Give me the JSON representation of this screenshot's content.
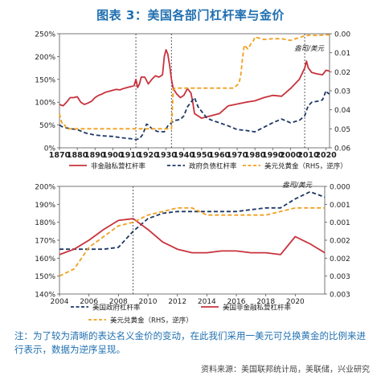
{
  "title": "图表 3：美国各部门杠杆率与金价",
  "note": "注：为了较为清晰的表达名义金价的变动，在此我们采用一美元可兑换黄金的比例来进行表示，数据为逆序呈现。",
  "source": "资料来源：美国联邦统计局，美联储，兴业研究",
  "colors": {
    "red": "#c8323c",
    "navy": "#1f3864",
    "gold": "#f0a020"
  },
  "chart_data": [
    {
      "type": "line",
      "x_range": [
        1870,
        2022
      ],
      "x_ticks": [
        "1870",
        "1880",
        "1890",
        "1900",
        "1910",
        "1920",
        "1930",
        "1940",
        "1950",
        "1960",
        "1970",
        "1980",
        "1990",
        "2000",
        "2010",
        "2020"
      ],
      "y_left_ticks": [
        "0%",
        "50%",
        "100%",
        "150%",
        "200%",
        "250%"
      ],
      "y_left_range": [
        0,
        250
      ],
      "y_right_ticks": [
        "0.00",
        "0.01",
        "0.02",
        "0.03",
        "0.04",
        "0.05",
        "0.06"
      ],
      "y_right_range": [
        0,
        0.06
      ],
      "y_right_inverted": true,
      "annotation": "盎司/美元",
      "vlines": [
        1913,
        1933,
        2008
      ],
      "series": [
        {
          "name": "非金融私营杠杆率",
          "axis": "left",
          "color": "#c8323c",
          "dash": "solid",
          "x": [
            1870,
            1872,
            1874,
            1876,
            1878,
            1880,
            1882,
            1884,
            1886,
            1888,
            1890,
            1892,
            1894,
            1896,
            1898,
            1900,
            1902,
            1904,
            1906,
            1908,
            1910,
            1912,
            1913,
            1914,
            1915,
            1916,
            1918,
            1920,
            1922,
            1924,
            1926,
            1928,
            1929,
            1930,
            1931,
            1932,
            1933,
            1934,
            1936,
            1938,
            1940,
            1942,
            1944,
            1945,
            1946,
            1948,
            1950,
            1955,
            1960,
            1965,
            1970,
            1975,
            1980,
            1985,
            1990,
            1995,
            2000,
            2005,
            2008,
            2009,
            2010,
            2012,
            2015,
            2018,
            2020,
            2022
          ],
          "y": [
            95,
            92,
            100,
            110,
            110,
            112,
            100,
            95,
            98,
            102,
            110,
            115,
            118,
            122,
            124,
            126,
            128,
            127,
            130,
            132,
            134,
            136,
            150,
            132,
            140,
            155,
            155,
            140,
            150,
            158,
            155,
            160,
            200,
            215,
            205,
            180,
            150,
            130,
            118,
            110,
            115,
            130,
            120,
            100,
            75,
            70,
            65,
            70,
            75,
            92,
            96,
            100,
            103,
            110,
            115,
            113,
            130,
            150,
            175,
            190,
            175,
            165,
            162,
            160,
            170,
            168
          ]
        },
        {
          "name": "政府负债杠杆率",
          "axis": "left",
          "color": "#1f3864",
          "dash": "dash",
          "x": [
            1870,
            1872,
            1876,
            1880,
            1885,
            1890,
            1895,
            1900,
            1905,
            1910,
            1913,
            1915,
            1917,
            1919,
            1920,
            1922,
            1925,
            1929,
            1931,
            1933,
            1935,
            1938,
            1940,
            1942,
            1944,
            1946,
            1948,
            1950,
            1953,
            1956,
            1960,
            1965,
            1970,
            1975,
            1980,
            1985,
            1990,
            1995,
            2000,
            2005,
            2008,
            2009,
            2010,
            2012,
            2015,
            2018,
            2020,
            2021,
            2022
          ],
          "y": [
            50,
            45,
            42,
            40,
            32,
            28,
            26,
            25,
            22,
            20,
            18,
            20,
            30,
            52,
            50,
            42,
            36,
            35,
            48,
            55,
            60,
            62,
            70,
            90,
            100,
            110,
            90,
            80,
            65,
            60,
            55,
            48,
            40,
            38,
            35,
            45,
            55,
            63,
            55,
            60,
            70,
            82,
            92,
            100,
            102,
            105,
            125,
            120,
            118
          ]
        },
        {
          "name": "美元兑黄金（RHS，逆序）",
          "axis": "right",
          "color": "#f0a020",
          "dash": "dash",
          "x": [
            1870,
            1871,
            1872,
            1873,
            1874,
            1876,
            1878,
            1880,
            1890,
            1900,
            1910,
            1920,
            1930,
            1933,
            1934,
            1935,
            1940,
            1950,
            1960,
            1968,
            1970,
            1971,
            1972,
            1973,
            1974,
            1976,
            1978,
            1979,
            1980,
            1985,
            1990,
            1995,
            2000,
            2005,
            2008,
            2009,
            2010,
            2015,
            2020,
            2022
          ],
          "y": [
            0.042,
            0.046,
            0.048,
            0.048,
            0.05,
            0.05,
            0.05,
            0.05,
            0.05,
            0.05,
            0.05,
            0.05,
            0.05,
            0.05,
            0.0295,
            0.0286,
            0.0286,
            0.0286,
            0.0286,
            0.0286,
            0.027,
            0.026,
            0.022,
            0.013,
            0.006,
            0.008,
            0.005,
            0.004,
            0.0017,
            0.003,
            0.0026,
            0.0026,
            0.0035,
            0.002,
            0.0011,
            0.0009,
            0.0007,
            0.0009,
            0.0006,
            0.0006
          ]
        }
      ]
    },
    {
      "type": "line",
      "x_range": [
        2004,
        2022
      ],
      "x_ticks": [
        "2004",
        "2006",
        "2008",
        "2010",
        "2012",
        "2014",
        "2016",
        "2018",
        "2020"
      ],
      "y_left_ticks": [
        "140%",
        "150%",
        "160%",
        "170%",
        "180%",
        "190%",
        "200%"
      ],
      "y_left_range": [
        140,
        200
      ],
      "y_right_ticks": [
        "0.000",
        "0.001",
        "0.001",
        "0.002",
        "0.002",
        "0.003",
        "0.003"
      ],
      "y_right_range": [
        0,
        0.003
      ],
      "y_right_inverted": true,
      "annotation": "盎司/美元",
      "vlines": [
        2009
      ],
      "series": [
        {
          "name": "美国政府杠杆率",
          "axis": "left",
          "color": "#1f3864",
          "dash": "dash",
          "x": [
            2004,
            2005,
            2006,
            2007,
            2008,
            2009,
            2010,
            2011,
            2012,
            2013,
            2014,
            2015,
            2016,
            2017,
            2018,
            2019,
            2020,
            2021,
            2022
          ],
          "y": [
            165,
            165,
            165,
            165,
            166,
            175,
            182,
            185,
            186,
            186,
            186,
            186,
            186,
            187,
            188,
            188,
            193,
            197,
            194
          ]
        },
        {
          "name": "美国非金融私营杠杆率",
          "axis": "left",
          "color": "#c8323c",
          "dash": "solid",
          "x": [
            2004,
            2005,
            2006,
            2007,
            2008,
            2009,
            2010,
            2011,
            2012,
            2013,
            2014,
            2015,
            2016,
            2017,
            2018,
            2019,
            2020,
            2021,
            2022
          ],
          "y": [
            162,
            165,
            170,
            176,
            181,
            182,
            176,
            169,
            165,
            163,
            163,
            164,
            164,
            163,
            163,
            162,
            172,
            168,
            163
          ]
        },
        {
          "name": "美元兑黄金（RHS，逆序）",
          "axis": "right",
          "color": "#f0a020",
          "dash": "dash",
          "x": [
            2004,
            2005,
            2006,
            2007,
            2008,
            2009,
            2010,
            2011,
            2012,
            2013,
            2014,
            2015,
            2016,
            2017,
            2018,
            2019,
            2020,
            2021,
            2022
          ],
          "y": [
            0.0025,
            0.0023,
            0.0017,
            0.0014,
            0.0011,
            0.001,
            0.0008,
            0.0007,
            0.0006,
            0.0006,
            0.0008,
            0.0008,
            0.0008,
            0.0008,
            0.0008,
            0.0007,
            0.0006,
            0.0006,
            0.0006
          ]
        }
      ]
    }
  ]
}
